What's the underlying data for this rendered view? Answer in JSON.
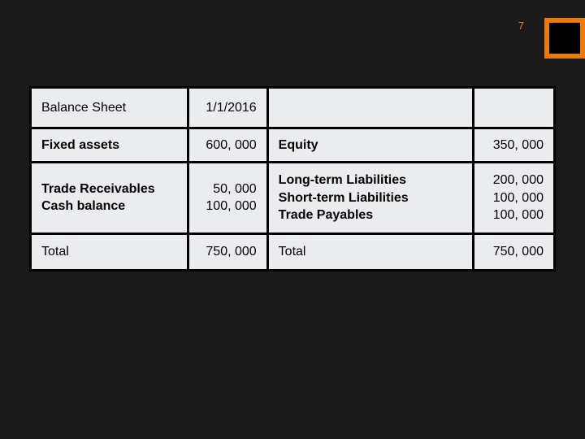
{
  "page": {
    "number": "7",
    "background_color": "#1a1a1a",
    "accent_color": "#ec7a08",
    "cell_bg_color": "#eaedf0",
    "border_color": "#000000"
  },
  "table": {
    "rows": [
      {
        "c1": "Balance Sheet",
        "c2": "1/1/2016",
        "c3": "",
        "c4": "",
        "c1_bold": true,
        "c3_bold": false
      },
      {
        "c1": "Fixed assets",
        "c2": "600, 000",
        "c3": "Equity",
        "c4": "350, 000",
        "c1_bold": true,
        "c3_bold": true
      },
      {
        "c1_lines": [
          "Trade Receivables",
          "Cash balance"
        ],
        "c2_lines": [
          "50, 000",
          "100, 000"
        ],
        "c3_lines": [
          "Long-term Liabilities",
          "Short-term Liabilities",
          "Trade Payables"
        ],
        "c4_lines": [
          "200, 000",
          "100, 000",
          "100, 000"
        ],
        "c1_bold": true,
        "c3_bold": true,
        "tall": true
      },
      {
        "c1": "Total",
        "c2": "750, 000",
        "c3": "Total",
        "c4": "750, 000",
        "c1_bold": false,
        "c3_bold": false
      }
    ]
  }
}
